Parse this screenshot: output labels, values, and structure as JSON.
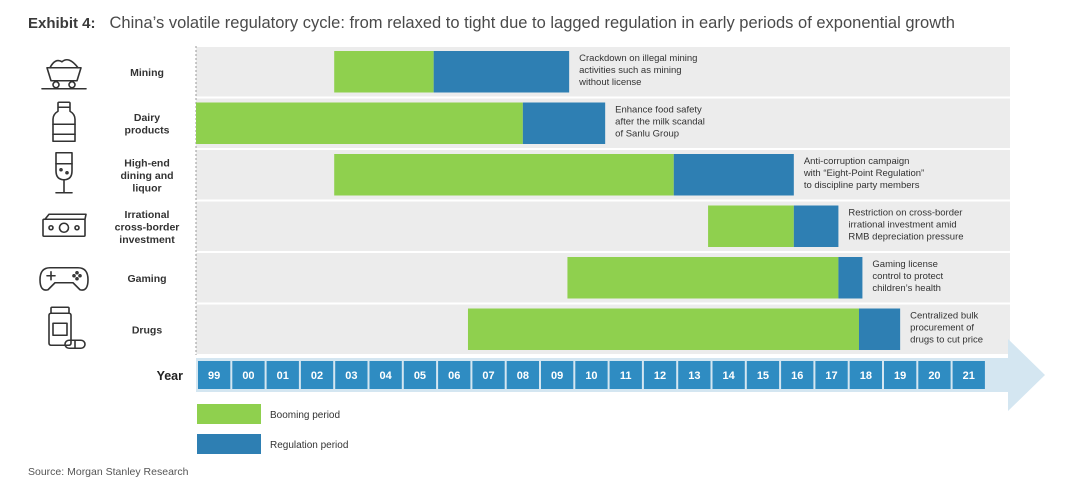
{
  "header": {
    "exhibit": "Exhibit 4:",
    "title": "China’s volatile regulatory cycle: from relaxed to tight due to lagged regulation in early periods of exponential growth"
  },
  "source": "Source: Morgan Stanley Research",
  "colors": {
    "booming": "#8fd04e",
    "regulation": "#2e7fb3",
    "band": "#ececec",
    "axis_fill": "#2f8cc2",
    "arrow": "#d4e6f1"
  },
  "chart_data": {
    "type": "gantt",
    "axis_label": "Year",
    "years": [
      "99",
      "00",
      "01",
      "02",
      "03",
      "04",
      "05",
      "06",
      "07",
      "08",
      "09",
      "10",
      "11",
      "12",
      "13",
      "14",
      "15",
      "16",
      "17",
      "18",
      "19",
      "20",
      "21"
    ],
    "legend": [
      {
        "key": "booming",
        "label": "Booming period"
      },
      {
        "key": "regulation",
        "label": "Regulation period"
      }
    ],
    "rows": [
      {
        "category": [
          "Mining"
        ],
        "icon": "mining-cart-icon",
        "boom_start": 3,
        "boom_end": 5.9,
        "reg_end": 9.85,
        "note": [
          "Crackdown on illegal mining",
          "activities such as mining",
          "without license"
        ]
      },
      {
        "category": [
          "Dairy",
          "products"
        ],
        "icon": "milk-bottle-icon",
        "boom_start": -1,
        "boom_end": 8.5,
        "reg_end": 10.9,
        "note": [
          "Enhance food safety",
          "after the milk scandal",
          "of Sanlu Group"
        ]
      },
      {
        "category": [
          "High-end",
          "dining and",
          "liquor"
        ],
        "icon": "wine-glass-icon",
        "boom_start": 3,
        "boom_end": 12.9,
        "reg_end": 16.4,
        "note": [
          "Anti-corruption campaign",
          "with “Eight-Point Regulation”",
          "to discipline party members"
        ]
      },
      {
        "category": [
          "Irrational",
          "cross-border",
          "investment"
        ],
        "icon": "cash-icon",
        "boom_start": 13.9,
        "boom_end": 16.4,
        "reg_end": 17.7,
        "note": [
          "Restriction on cross-border",
          "irrational investment amid",
          "RMB  depreciation pressure"
        ]
      },
      {
        "category": [
          "Gaming"
        ],
        "icon": "gamepad-icon",
        "boom_start": 9.8,
        "boom_end": 17.7,
        "reg_end": 18.4,
        "note": [
          "Gaming license",
          "control to protect",
          "children’s health"
        ]
      },
      {
        "category": [
          "Drugs"
        ],
        "icon": "pill-bottle-icon",
        "boom_start": 6.9,
        "boom_end": 18.3,
        "reg_end": 19.5,
        "note": [
          "Centralized bulk",
          "procurement of",
          "drugs to cut price"
        ]
      }
    ]
  }
}
